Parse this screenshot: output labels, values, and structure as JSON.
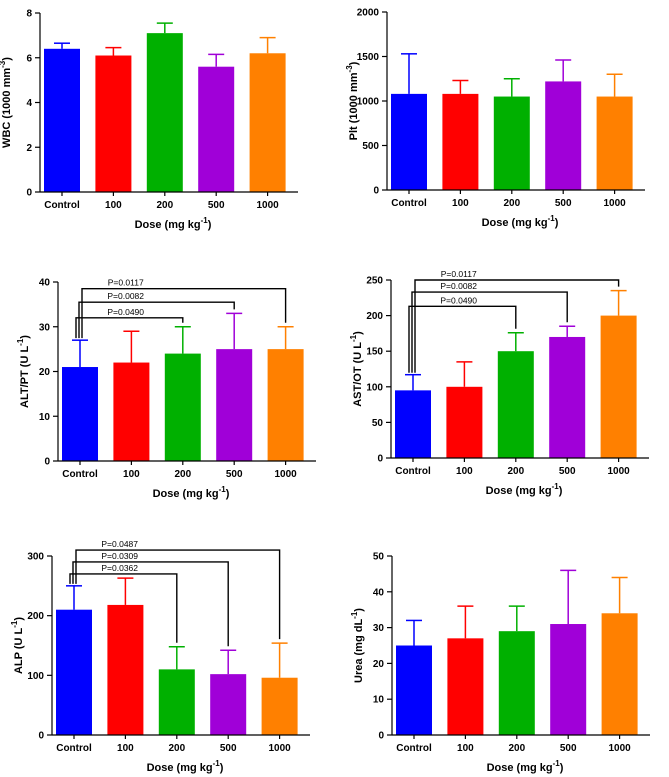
{
  "chart_data": [
    {
      "type": "bar",
      "title": "",
      "categories": [
        "Control",
        "100",
        "200",
        "500",
        "1000"
      ],
      "values": [
        6.4,
        6.1,
        7.1,
        5.6,
        6.2
      ],
      "errors": [
        0.25,
        0.35,
        0.45,
        0.55,
        0.7
      ],
      "xlabel": "Dose (mg kg",
      "xlabel_sup": "-1",
      "xlabel_end": ")",
      "ylabel": "WBC (1000 mm",
      "ylabel_sup": "-3",
      "ylabel_end": ")",
      "ylim": [
        0,
        8
      ],
      "yticks": [
        0,
        2,
        4,
        6,
        8
      ],
      "significance": []
    },
    {
      "type": "bar",
      "title": "",
      "categories": [
        "Control",
        "100",
        "200",
        "500",
        "1000"
      ],
      "values": [
        1080,
        1080,
        1050,
        1220,
        1050
      ],
      "errors": [
        450,
        150,
        200,
        240,
        250
      ],
      "xlabel": "Dose (mg kg",
      "xlabel_sup": "-1",
      "xlabel_end": ")",
      "ylabel": "Plt (1000 mm",
      "ylabel_sup": "-3",
      "ylabel_end": ")",
      "ylim": [
        0,
        2000
      ],
      "yticks": [
        0,
        500,
        1000,
        1500,
        2000
      ],
      "significance": []
    },
    {
      "type": "bar",
      "title": "",
      "categories": [
        "Control",
        "100",
        "200",
        "500",
        "1000"
      ],
      "values": [
        21,
        22,
        24,
        25,
        25
      ],
      "errors": [
        6,
        7,
        6,
        8,
        5
      ],
      "xlabel": "Dose (mg kg",
      "xlabel_sup": "-1",
      "xlabel_end": ")",
      "ylabel": "ALT/PT (U L",
      "ylabel_sup": "-1",
      "ylabel_end": ")",
      "ylim": [
        0,
        40
      ],
      "yticks": [
        0,
        10,
        20,
        30,
        40
      ],
      "significance": [
        {
          "from": 0,
          "to": 2,
          "label": "P=0.0490",
          "level": 32
        },
        {
          "from": 0,
          "to": 3,
          "label": "P=0.0082",
          "level": 35.5
        },
        {
          "from": 0,
          "to": 4,
          "label": "P=0.0117",
          "level": 38.5
        }
      ]
    },
    {
      "type": "bar",
      "title": "",
      "categories": [
        "Control",
        "100",
        "200",
        "500",
        "1000"
      ],
      "values": [
        95,
        100,
        150,
        170,
        200
      ],
      "errors": [
        22,
        35,
        26,
        15,
        35
      ],
      "xlabel": "Dose (mg kg",
      "xlabel_sup": "-1",
      "xlabel_end": ")",
      "ylabel": "AST/OT (U L",
      "ylabel_sup": "-1",
      "ylabel_end": ")",
      "ylim": [
        0,
        250
      ],
      "yticks": [
        0,
        50,
        100,
        150,
        200,
        250
      ],
      "significance": [
        {
          "from": 0,
          "to": 2,
          "label": "P=0.0490",
          "level": 213
        },
        {
          "from": 0,
          "to": 3,
          "label": "P=0.0082",
          "level": 233
        },
        {
          "from": 0,
          "to": 4,
          "label": "P=0.0117",
          "level": 250
        }
      ]
    },
    {
      "type": "bar",
      "title": "",
      "categories": [
        "Control",
        "100",
        "200",
        "500",
        "1000"
      ],
      "values": [
        210,
        218,
        110,
        102,
        96
      ],
      "errors": [
        40,
        45,
        38,
        40,
        58
      ],
      "xlabel": "Dose (mg kg",
      "xlabel_sup": "-1",
      "xlabel_end": ")",
      "ylabel": "ALP (U L",
      "ylabel_sup": "-1",
      "ylabel_end": ")",
      "ylim": [
        0,
        300
      ],
      "yticks": [
        0,
        100,
        200,
        300
      ],
      "significance": [
        {
          "from": 0,
          "to": 2,
          "label": "P=0.0362",
          "level": 270
        },
        {
          "from": 0,
          "to": 3,
          "label": "P=0.0309",
          "level": 290
        },
        {
          "from": 0,
          "to": 4,
          "label": "P=0.0487",
          "level": 310
        }
      ]
    },
    {
      "type": "bar",
      "title": "",
      "categories": [
        "Control",
        "100",
        "200",
        "500",
        "1000"
      ],
      "values": [
        25,
        27,
        29,
        31,
        34
      ],
      "errors": [
        7,
        9,
        7,
        15,
        10
      ],
      "xlabel": "Dose (mg kg",
      "xlabel_sup": "-1",
      "xlabel_end": ")",
      "ylabel": "Urea (mg dL",
      "ylabel_sup": "-1",
      "ylabel_end": ")",
      "ylim": [
        0,
        50
      ],
      "yticks": [
        0,
        10,
        20,
        30,
        40,
        50
      ],
      "significance": []
    }
  ],
  "colors": {
    "bars": [
      "#0000ff",
      "#ff0000",
      "#00b000",
      "#a000d8",
      "#ff8000"
    ],
    "axis": "#000000"
  }
}
